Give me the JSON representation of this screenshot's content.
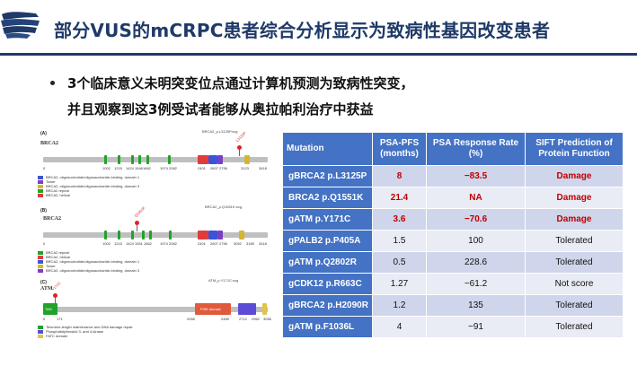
{
  "slide": {
    "title": "部分VUS的mCRPC患者综合分析显示为致病性基因改变患者",
    "bullet": [
      "3个临床意义未明突变位点通过计算机预测为致病性突变，",
      "并且观察到这3例受试者能够从奥拉帕利治疗中获益"
    ]
  },
  "colors": {
    "title": "#1f3a68",
    "header_bg": "#4472c4",
    "row_odd": "#cfd5ea",
    "row_even": "#e9ebf5",
    "highlight": "#c00000"
  },
  "figure": {
    "panels": [
      {
        "letter": "(A)",
        "gene": "BRCA2",
        "file": "BRCA2_p.L3125P.svg",
        "mutation": "L3125P",
        "ticks": [
          "0",
          "1002",
          "1215",
          "1424",
          "1546",
          "1662",
          "1974",
          "2082",
          "2401",
          "2607",
          "2796",
          "3123",
          "3418"
        ],
        "legend": [
          "BRCA2, oligonucleotide/oligosaccharide-binding, domain 1",
          "Tower",
          "BRCA2, oligonucleotide/oligosaccharide-binding, domain 3",
          "BRCA2 repeat",
          "BRCA2, helical"
        ]
      },
      {
        "letter": "(B)",
        "gene": "BRCA2",
        "file": "BRCA2_p.Q1551K.svg",
        "mutation": "Q1551K",
        "ticks": [
          "0",
          "1002",
          "1215",
          "1424",
          "1551",
          "1662",
          "1974",
          "2082",
          "2401",
          "2607",
          "2796",
          "3052",
          "3185",
          "3418"
        ],
        "legend": [
          "BRCA2 repeat",
          "BRCA2, helical",
          "BRCA2, oligonucleotide/oligosaccharide-binding, domain 1",
          "Tower",
          "BRCA2, oligonucleotide/oligosaccharide-binding, domain 3"
        ]
      },
      {
        "letter": "(C)",
        "gene": "ATM",
        "file": "ATM_p.Y171C.svg",
        "mutation": "Y171C",
        "domains": {
          "tan": "TAN",
          "pi3k": "PI3K domain"
        },
        "ticks": [
          "0",
          "171",
          "2056",
          "2489",
          "2712",
          "2962",
          "3056"
        ],
        "legend": [
          "Telomere-length maintenance and DNA damage repair",
          "Phosphatidylinositol 3- and 4-kinase",
          "FATC domain"
        ]
      }
    ]
  },
  "table": {
    "headers": [
      "Mutation",
      "PSA-PFS (months)",
      "PSA Response Rate (%)",
      "SIFT Prediction of Protein Function"
    ],
    "rows": [
      {
        "mutation": "gBRCA2 p.L3125P",
        "pfs": "8",
        "rr": "−83.5",
        "sift": "Damage",
        "highlight": true
      },
      {
        "mutation": "BRCA2 p.Q1551K",
        "pfs": "21.4",
        "rr": "NA",
        "sift": "Damage",
        "highlight": true
      },
      {
        "mutation": "gATM p.Y171C",
        "pfs": "3.6",
        "rr": "−70.6",
        "sift": "Damage",
        "highlight": true
      },
      {
        "mutation": "gPALB2 p.P405A",
        "pfs": "1.5",
        "rr": "100",
        "sift": "Tolerated",
        "highlight": false
      },
      {
        "mutation": "gATM p.Q2802R",
        "pfs": "0.5",
        "rr": "228.6",
        "sift": "Tolerated",
        "highlight": false
      },
      {
        "mutation": "gCDK12 p.R663C",
        "pfs": "1.27",
        "rr": "−61.2",
        "sift": "Not score",
        "highlight": false
      },
      {
        "mutation": "gBRCA2 p.H2090R",
        "pfs": "1.2",
        "rr": "135",
        "sift": "Tolerated",
        "highlight": false
      },
      {
        "mutation": "gATM p.F1036L",
        "pfs": "4",
        "rr": "−91",
        "sift": "Tolerated",
        "highlight": false
      }
    ]
  }
}
